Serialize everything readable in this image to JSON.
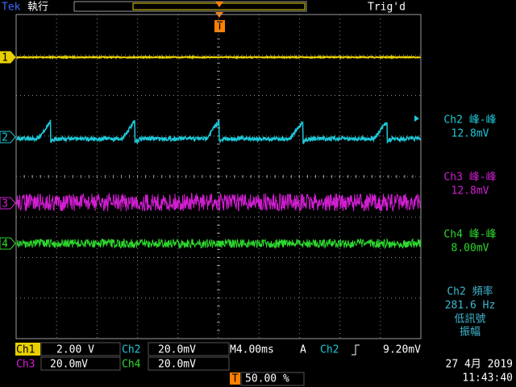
{
  "header": {
    "brand": "Tek",
    "status": "執行",
    "trigger_state": "Trig'd",
    "trigger_marker": "T"
  },
  "channel_markers": [
    "1",
    "2",
    "3",
    "4"
  ],
  "measurements": [
    {
      "label": "Ch2 峰-峰",
      "value": "12.8mV"
    },
    {
      "label": "Ch3 峰-峰",
      "value": "12.8mV"
    },
    {
      "label": "Ch4 峰-峰",
      "value": "8.00mV"
    },
    {
      "label": "Ch2 頻率",
      "value": "281.6 Hz",
      "notes": [
        "低訊號",
        "振幅"
      ]
    }
  ],
  "status_bar": {
    "channels": [
      {
        "name": "Ch1",
        "scale": "2.00 V"
      },
      {
        "name": "Ch2",
        "scale": "20.0mV"
      },
      {
        "name": "Ch3",
        "scale": "20.0mV"
      },
      {
        "name": "Ch4",
        "scale": "20.0mV"
      }
    ],
    "timebase": "M4.00ms",
    "trigger": {
      "mode": "A",
      "source": "Ch2",
      "level": "9.20mV"
    },
    "trigger_position": {
      "marker": "T",
      "value": "50.00 %"
    },
    "date": "27 4月 2019",
    "time": "11:43:40"
  }
}
